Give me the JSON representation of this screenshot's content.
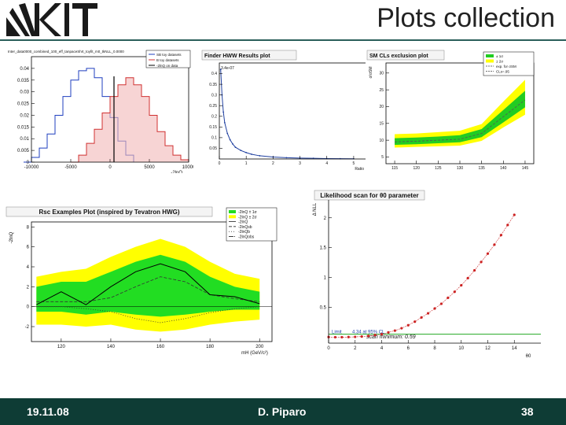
{
  "header": {
    "title": "Plots collection"
  },
  "footer": {
    "date": "19.11.08",
    "author": "D. Piparo",
    "page": "38"
  },
  "chart_data": [
    {
      "type": "histogram",
      "header": "Inter_data0000_combined_100_eff_tanpaceShrt_toyfit_m0_tkNLL_0.0000",
      "xlabel": "-2lnQ",
      "xticks": [
        "-10000",
        "-5000",
        "0",
        "5000",
        "10000"
      ],
      "yticks": [
        "0",
        "0.005",
        "0.01",
        "0.015",
        "0.02",
        "0.025",
        "0.03",
        "0.035",
        "0.04"
      ],
      "xlim": [
        -10000,
        10000
      ],
      "ylim": [
        0,
        0.045
      ],
      "legend": [
        "SB toy datasets",
        "B toy datasets",
        "-2lnQ on data"
      ],
      "colors": {
        "sb": "#1f3fbf",
        "b": "#d03030",
        "data": "#000000"
      },
      "series": [
        {
          "name": "SB toy datasets",
          "x": [
            -11000,
            -10000,
            -9000,
            -8000,
            -7000,
            -6000,
            -5000,
            -4000,
            -3000,
            -2000,
            -1000,
            0,
            1000,
            2000,
            3000
          ],
          "y": [
            0.0,
            0.002,
            0.006,
            0.012,
            0.02,
            0.028,
            0.035,
            0.039,
            0.04,
            0.036,
            0.028,
            0.019,
            0.009,
            0.003,
            0.0
          ]
        },
        {
          "name": "B toy datasets",
          "x": [
            -5000,
            -4000,
            -3000,
            -2000,
            -1000,
            0,
            1000,
            2000,
            3000,
            4000,
            5000,
            6000,
            7000,
            8000,
            9000,
            10000
          ],
          "y": [
            0.0,
            0.003,
            0.008,
            0.014,
            0.021,
            0.028,
            0.033,
            0.036,
            0.033,
            0.028,
            0.02,
            0.013,
            0.007,
            0.003,
            0.001,
            0.0
          ]
        }
      ],
      "data_line_x": 500
    },
    {
      "type": "line",
      "title": "Finder HWW Results plot",
      "xlabel": "Ratio",
      "xticks": [
        "0",
        "1",
        "2",
        "3",
        "4",
        "5"
      ],
      "yticks": [
        "0.05",
        "0.1",
        "0.15",
        "0.2",
        "0.25",
        "0.3",
        "0.35",
        "0.4"
      ],
      "xlim": [
        0,
        5.5
      ],
      "ylim": [
        0,
        0.45
      ],
      "top_label": "3.4e-07",
      "x": [
        0.05,
        0.1,
        0.15,
        0.2,
        0.3,
        0.4,
        0.5,
        0.6,
        0.8,
        1.0,
        1.2,
        1.5,
        2.0,
        2.5,
        3.0,
        3.5,
        4.0,
        4.5,
        5.0
      ],
      "y": [
        0.42,
        0.3,
        0.22,
        0.17,
        0.12,
        0.09,
        0.07,
        0.055,
        0.04,
        0.03,
        0.022,
        0.015,
        0.009,
        0.006,
        0.004,
        0.003,
        0.002,
        0.0015,
        0.001
      ]
    },
    {
      "type": "area",
      "title": "SM CLs exclusion plot",
      "ylabel": "σ/σSM",
      "xticks": [
        "115",
        "120",
        "125",
        "130",
        "135",
        "140",
        "145"
      ],
      "yticks": [
        "5",
        "10",
        "15",
        "20",
        "25",
        "30"
      ],
      "xlim": [
        113,
        147
      ],
      "ylim": [
        3,
        33
      ],
      "legend": [
        "± 1σ",
        "± 2σ",
        "exp. for σSM",
        "CLs=.95"
      ],
      "colors": {
        "one_sigma": "#22cc22",
        "two_sigma": "#ffff00",
        "line": "#555555"
      },
      "x": [
        115,
        120,
        125,
        130,
        135,
        140,
        145
      ],
      "expected": [
        9.5,
        9.7,
        10.0,
        10.3,
        12.0,
        17.0,
        22.0
      ],
      "one_sigma": [
        [
          8.6,
          10.6
        ],
        [
          8.8,
          10.8
        ],
        [
          9.1,
          11.1
        ],
        [
          9.4,
          11.5
        ],
        [
          10.9,
          13.3
        ],
        [
          15.3,
          19.0
        ],
        [
          19.8,
          24.7
        ]
      ],
      "two_sigma": [
        [
          7.8,
          11.8
        ],
        [
          8.0,
          12.0
        ],
        [
          8.2,
          12.4
        ],
        [
          8.4,
          12.8
        ],
        [
          9.8,
          14.8
        ],
        [
          13.8,
          21.5
        ],
        [
          17.6,
          28.0
        ]
      ]
    },
    {
      "type": "area",
      "title": "Rsc Examples Plot (inspired by Tevatron HWG)",
      "ylabel": "-2lnQ",
      "xlabel": "mH (GeV/c²)",
      "xticks": [
        "120",
        "140",
        "160",
        "180",
        "200"
      ],
      "yticks": [
        "-2",
        "0",
        "2",
        "4",
        "6",
        "8"
      ],
      "xlim": [
        108,
        205
      ],
      "ylim": [
        -3.5,
        8.5
      ],
      "legend": [
        "-2lnQ ± 1σ",
        "-2lnQ ± 2σ",
        "-2lnQ",
        "-2lnQsb",
        "-2lnQb",
        "-2lnQobs"
      ],
      "colors": {
        "one_sigma": "#22dd22",
        "two_sigma": "#ffff00"
      },
      "x": [
        110,
        120,
        130,
        140,
        150,
        160,
        170,
        180,
        190,
        200
      ],
      "one_sigma_lo": [
        -0.5,
        -0.5,
        -0.8,
        -0.5,
        -0.8,
        -1.0,
        -0.8,
        -0.5,
        -0.3,
        -0.3
      ],
      "one_sigma_hi": [
        2.0,
        2.5,
        2.5,
        3.5,
        4.5,
        5.2,
        4.5,
        3.0,
        2.0,
        1.5
      ],
      "two_sigma_lo": [
        -1.8,
        -1.8,
        -2.0,
        -1.8,
        -2.3,
        -2.5,
        -2.3,
        -1.8,
        -1.5,
        -1.3
      ],
      "two_sigma_hi": [
        3.0,
        3.5,
        3.8,
        5.0,
        6.0,
        6.8,
        6.0,
        4.5,
        3.3,
        2.8
      ],
      "observed": [
        0.2,
        1.5,
        0.2,
        2.0,
        3.5,
        4.3,
        3.5,
        1.2,
        1.0,
        0.3
      ],
      "signal_bkg": [
        0.5,
        0.5,
        0.5,
        0.9,
        2.0,
        3.0,
        2.5,
        1.2,
        0.8,
        0.5
      ],
      "background": [
        0.0,
        0.0,
        -0.2,
        -0.5,
        -1.2,
        -1.6,
        -1.2,
        -0.6,
        -0.2,
        0.0
      ]
    },
    {
      "type": "scatter",
      "title": "Likelihood scan for θ0 parameter",
      "ylabel": "Δ NLL",
      "xlabel": "θ0",
      "xticks": [
        "0",
        "2",
        "4",
        "6",
        "8",
        "10",
        "12",
        "14"
      ],
      "yticks": [
        "0.5",
        "1",
        "1.5",
        "2"
      ],
      "xlim": [
        0,
        16
      ],
      "ylim": [
        -0.1,
        2.3
      ],
      "line_label": "Limit",
      "line_value": "4.34 at 95% CL",
      "minimum_label": "scan minimum: 0.59",
      "x": [
        0,
        0.5,
        1,
        1.5,
        2,
        2.5,
        3,
        3.5,
        4,
        4.5,
        5,
        5.5,
        6,
        6.5,
        7,
        7.5,
        8,
        8.5,
        9,
        9.5,
        10,
        10.5,
        11,
        11.5,
        12,
        12.5,
        13,
        13.5,
        14
      ],
      "y": [
        0.002,
        0.0,
        0.0,
        0.002,
        0.005,
        0.01,
        0.02,
        0.035,
        0.05,
        0.08,
        0.11,
        0.15,
        0.2,
        0.26,
        0.33,
        0.4,
        0.48,
        0.56,
        0.66,
        0.76,
        0.87,
        0.99,
        1.12,
        1.26,
        1.4,
        1.55,
        1.71,
        1.88,
        2.05
      ],
      "threshold": 0.05
    }
  ]
}
